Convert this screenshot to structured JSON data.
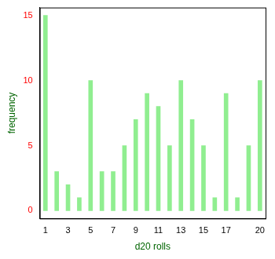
{
  "chart_data": {
    "type": "bar",
    "x_label": "d20 rolls",
    "y_label": "frequency",
    "categories": [
      "1",
      null,
      "3",
      null,
      "5",
      null,
      "7",
      null,
      "9",
      null,
      "11",
      null,
      "13",
      null,
      "15",
      null,
      "17",
      null,
      null,
      "20"
    ],
    "values": [
      15,
      3,
      2,
      1,
      10,
      3,
      3,
      5,
      7,
      9,
      8,
      5,
      10,
      7,
      5,
      1,
      9,
      1,
      5,
      10
    ],
    "color": "#90ee90",
    "ylim": [
      -0.6,
      15.6
    ],
    "yticks": [
      0,
      5,
      10,
      15
    ],
    "grid": false
  }
}
